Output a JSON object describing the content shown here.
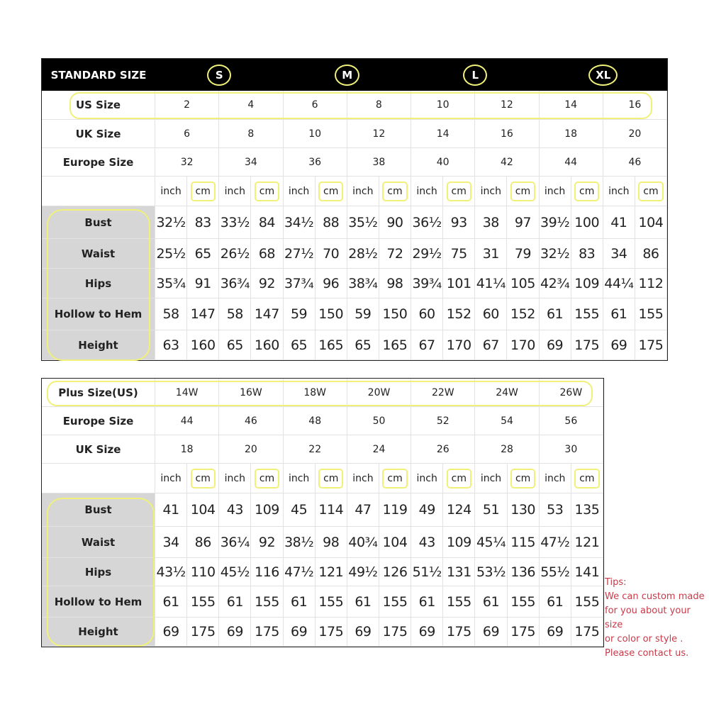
{
  "standard": {
    "header_label": "STANDARD SIZE",
    "letters": [
      "S",
      "M",
      "L",
      "XL"
    ],
    "rows": [
      {
        "label": "US Size",
        "values": [
          "2",
          "4",
          "6",
          "8",
          "10",
          "12",
          "14",
          "16"
        ]
      },
      {
        "label": "UK Size",
        "values": [
          "6",
          "8",
          "10",
          "12",
          "14",
          "16",
          "18",
          "20"
        ]
      },
      {
        "label": "Europe Size",
        "values": [
          "32",
          "34",
          "36",
          "38",
          "40",
          "42",
          "44",
          "46"
        ]
      }
    ],
    "unit_labels": [
      "inch",
      "cm"
    ],
    "measurements": [
      {
        "label": "Bust",
        "values": [
          "32½",
          "83",
          "33½",
          "84",
          "34½",
          "88",
          "35½",
          "90",
          "36½",
          "93",
          "38",
          "97",
          "39½",
          "100",
          "41",
          "104"
        ]
      },
      {
        "label": "Waist",
        "values": [
          "25½",
          "65",
          "26½",
          "68",
          "27½",
          "70",
          "28½",
          "72",
          "29½",
          "75",
          "31",
          "79",
          "32½",
          "83",
          "34",
          "86"
        ]
      },
      {
        "label": "Hips",
        "values": [
          "35¾",
          "91",
          "36¾",
          "92",
          "37¾",
          "96",
          "38¾",
          "98",
          "39¾",
          "101",
          "41¼",
          "105",
          "42¾",
          "109",
          "44¼",
          "112"
        ]
      },
      {
        "label": "Hollow to Hem",
        "values": [
          "58",
          "147",
          "58",
          "147",
          "59",
          "150",
          "59",
          "150",
          "60",
          "152",
          "60",
          "152",
          "61",
          "155",
          "61",
          "155"
        ]
      },
      {
        "label": "Height",
        "values": [
          "63",
          "160",
          "65",
          "160",
          "65",
          "165",
          "65",
          "165",
          "67",
          "170",
          "67",
          "170",
          "69",
          "175",
          "69",
          "175"
        ]
      }
    ]
  },
  "plus": {
    "rows": [
      {
        "label": "Plus Size(US)",
        "values": [
          "14W",
          "16W",
          "18W",
          "20W",
          "22W",
          "24W",
          "26W"
        ]
      },
      {
        "label": "Europe Size",
        "values": [
          "44",
          "46",
          "48",
          "50",
          "52",
          "54",
          "56"
        ]
      },
      {
        "label": "UK Size",
        "values": [
          "18",
          "20",
          "22",
          "24",
          "26",
          "28",
          "30"
        ]
      }
    ],
    "unit_labels": [
      "inch",
      "cm"
    ],
    "measurements": [
      {
        "label": "Bust",
        "values": [
          "41",
          "104",
          "43",
          "109",
          "45",
          "114",
          "47",
          "119",
          "49",
          "124",
          "51",
          "130",
          "53",
          "135"
        ]
      },
      {
        "label": "Waist",
        "values": [
          "34",
          "86",
          "36¼",
          "92",
          "38½",
          "98",
          "40¾",
          "104",
          "43",
          "109",
          "45¼",
          "115",
          "47½",
          "121"
        ]
      },
      {
        "label": "Hips",
        "values": [
          "43½",
          "110",
          "45½",
          "116",
          "47½",
          "121",
          "49½",
          "126",
          "51½",
          "131",
          "53½",
          "136",
          "55½",
          "141"
        ]
      },
      {
        "label": "Hollow to Hem",
        "values": [
          "61",
          "155",
          "61",
          "155",
          "61",
          "155",
          "61",
          "155",
          "61",
          "155",
          "61",
          "155",
          "61",
          "155"
        ]
      },
      {
        "label": "Height",
        "values": [
          "69",
          "175",
          "69",
          "175",
          "69",
          "175",
          "69",
          "175",
          "69",
          "175",
          "69",
          "175",
          "69",
          "175"
        ]
      }
    ]
  },
  "tips": {
    "title": "Tips:",
    "lines": [
      "We can custom made",
      "for you about your size",
      "or color or style .",
      "Please contact us."
    ]
  },
  "colors": {
    "highlight": "#f0f07a",
    "header_bg": "#000000",
    "label_bg": "#d6d6d6",
    "tips_text": "#c83a4a"
  }
}
